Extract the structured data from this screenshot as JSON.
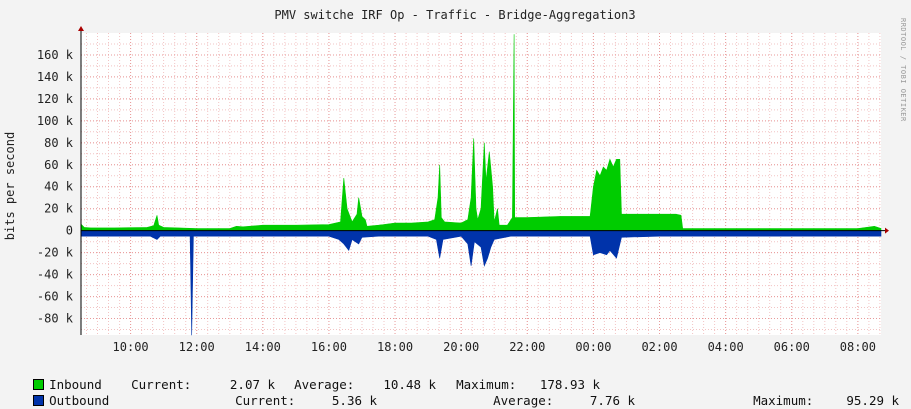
{
  "chart_data": {
    "type": "area",
    "title": "PMV switche IRF Op - Traffic - Bridge-Aggregation3",
    "ylabel": "bits per second",
    "vendor_label": "RRDTOOL / TOBI OETIKER",
    "ylim": [
      -95000,
      180000
    ],
    "xlim": [
      8.5,
      32.7
    ],
    "y_ticks": [
      {
        "v": 160000,
        "label": "160 k"
      },
      {
        "v": 140000,
        "label": "140 k"
      },
      {
        "v": 120000,
        "label": "120 k"
      },
      {
        "v": 100000,
        "label": "100 k"
      },
      {
        "v": 80000,
        "label": "80 k"
      },
      {
        "v": 60000,
        "label": "60 k"
      },
      {
        "v": 40000,
        "label": "40 k"
      },
      {
        "v": 20000,
        "label": "20 k"
      },
      {
        "v": 0,
        "label": "0"
      },
      {
        "v": -20000,
        "label": "-20 k"
      },
      {
        "v": -40000,
        "label": "-40 k"
      },
      {
        "v": -60000,
        "label": "-60 k"
      },
      {
        "v": -80000,
        "label": "-80 k"
      }
    ],
    "x_ticks": [
      {
        "v": 10,
        "label": "10:00"
      },
      {
        "v": 12,
        "label": "12:00"
      },
      {
        "v": 14,
        "label": "14:00"
      },
      {
        "v": 16,
        "label": "16:00"
      },
      {
        "v": 18,
        "label": "18:00"
      },
      {
        "v": 20,
        "label": "20:00"
      },
      {
        "v": 22,
        "label": "22:00"
      },
      {
        "v": 24,
        "label": "00:00"
      },
      {
        "v": 26,
        "label": "02:00"
      },
      {
        "v": 28,
        "label": "04:00"
      },
      {
        "v": 30,
        "label": "06:00"
      },
      {
        "v": 32,
        "label": "08:00"
      }
    ],
    "grid": true,
    "series": [
      {
        "name": "Inbound",
        "color": "#00cc00",
        "points": [
          [
            8.5,
            6000
          ],
          [
            8.6,
            3000
          ],
          [
            8.8,
            2500
          ],
          [
            9.5,
            2500
          ],
          [
            10.5,
            3000
          ],
          [
            10.7,
            4500
          ],
          [
            10.8,
            14000
          ],
          [
            10.85,
            5000
          ],
          [
            11.0,
            3000
          ],
          [
            12.0,
            2000
          ],
          [
            13.0,
            2000
          ],
          [
            13.2,
            4000
          ],
          [
            13.4,
            3500
          ],
          [
            14.0,
            5000
          ],
          [
            15.0,
            5000
          ],
          [
            16.0,
            5500
          ],
          [
            16.35,
            8000
          ],
          [
            16.45,
            48000
          ],
          [
            16.55,
            20000
          ],
          [
            16.7,
            8000
          ],
          [
            16.85,
            15000
          ],
          [
            16.9,
            30000
          ],
          [
            17.0,
            13000
          ],
          [
            17.1,
            10000
          ],
          [
            17.15,
            4000
          ],
          [
            17.5,
            5000
          ],
          [
            18.0,
            7000
          ],
          [
            18.5,
            7000
          ],
          [
            19.0,
            8000
          ],
          [
            19.2,
            10000
          ],
          [
            19.3,
            30000
          ],
          [
            19.35,
            60000
          ],
          [
            19.4,
            12000
          ],
          [
            19.5,
            8000
          ],
          [
            20.0,
            7000
          ],
          [
            20.2,
            10000
          ],
          [
            20.3,
            30000
          ],
          [
            20.38,
            84000
          ],
          [
            20.45,
            20000
          ],
          [
            20.5,
            10000
          ],
          [
            20.6,
            20000
          ],
          [
            20.7,
            80000
          ],
          [
            20.75,
            45000
          ],
          [
            20.85,
            72000
          ],
          [
            20.95,
            40000
          ],
          [
            21.0,
            8000
          ],
          [
            21.1,
            20000
          ],
          [
            21.15,
            5000
          ],
          [
            21.4,
            5000
          ],
          [
            21.55,
            12000
          ],
          [
            21.6,
            178930
          ],
          [
            21.62,
            12000
          ],
          [
            22.0,
            12000
          ],
          [
            23.0,
            13000
          ],
          [
            23.9,
            13000
          ],
          [
            24.0,
            40000
          ],
          [
            24.1,
            55000
          ],
          [
            24.2,
            50000
          ],
          [
            24.3,
            58000
          ],
          [
            24.4,
            55000
          ],
          [
            24.5,
            65000
          ],
          [
            24.6,
            58000
          ],
          [
            24.7,
            65000
          ],
          [
            24.8,
            65000
          ],
          [
            24.85,
            15000
          ],
          [
            25.5,
            15000
          ],
          [
            26.5,
            15000
          ],
          [
            26.65,
            14000
          ],
          [
            26.7,
            2000
          ],
          [
            28.0,
            2000
          ],
          [
            30.0,
            2000
          ],
          [
            32.0,
            2000
          ],
          [
            32.5,
            4000
          ],
          [
            32.7,
            2000
          ]
        ]
      },
      {
        "name": "Outbound",
        "color": "#0033aa",
        "points": [
          [
            8.5,
            -5000
          ],
          [
            9.0,
            -5000
          ],
          [
            10.6,
            -5000
          ],
          [
            10.8,
            -8000
          ],
          [
            10.9,
            -5000
          ],
          [
            11.8,
            -5000
          ],
          [
            11.85,
            -95290
          ],
          [
            11.9,
            -5000
          ],
          [
            13.0,
            -5000
          ],
          [
            14.0,
            -5000
          ],
          [
            15.0,
            -5000
          ],
          [
            16.0,
            -5000
          ],
          [
            16.3,
            -8000
          ],
          [
            16.45,
            -12000
          ],
          [
            16.6,
            -18000
          ],
          [
            16.7,
            -8000
          ],
          [
            16.8,
            -10000
          ],
          [
            16.9,
            -12000
          ],
          [
            17.0,
            -6000
          ],
          [
            17.5,
            -5000
          ],
          [
            18.0,
            -5000
          ],
          [
            19.0,
            -5000
          ],
          [
            19.25,
            -8000
          ],
          [
            19.35,
            -25000
          ],
          [
            19.45,
            -8000
          ],
          [
            20.0,
            -5000
          ],
          [
            20.2,
            -12000
          ],
          [
            20.3,
            -32000
          ],
          [
            20.4,
            -10000
          ],
          [
            20.6,
            -15000
          ],
          [
            20.7,
            -32000
          ],
          [
            20.8,
            -25000
          ],
          [
            20.9,
            -15000
          ],
          [
            21.0,
            -8000
          ],
          [
            21.5,
            -5000
          ],
          [
            22.0,
            -5000
          ],
          [
            23.0,
            -5000
          ],
          [
            23.9,
            -5000
          ],
          [
            24.0,
            -22000
          ],
          [
            24.2,
            -20000
          ],
          [
            24.4,
            -22000
          ],
          [
            24.5,
            -18000
          ],
          [
            24.7,
            -25000
          ],
          [
            24.85,
            -6000
          ],
          [
            26.0,
            -5000
          ],
          [
            27.0,
            -5000
          ],
          [
            28.0,
            -5000
          ],
          [
            29.0,
            -5000
          ],
          [
            30.0,
            -5000
          ],
          [
            31.0,
            -5000
          ],
          [
            32.0,
            -5000
          ],
          [
            32.7,
            -5000
          ]
        ]
      }
    ]
  },
  "legend": {
    "inbound": {
      "name": "Inbound",
      "current_label": "Current:",
      "current": "2.07 k",
      "average_label": "Average:",
      "average": "10.48 k",
      "maximum_label": "Maximum:",
      "maximum": "178.93 k"
    },
    "outbound": {
      "name": "Outbound",
      "current_label": "Current:",
      "current": "5.36 k",
      "average_label": "Average:",
      "average": "7.76 k",
      "maximum_label": "Maximum:",
      "maximum": "95.29 k"
    }
  }
}
